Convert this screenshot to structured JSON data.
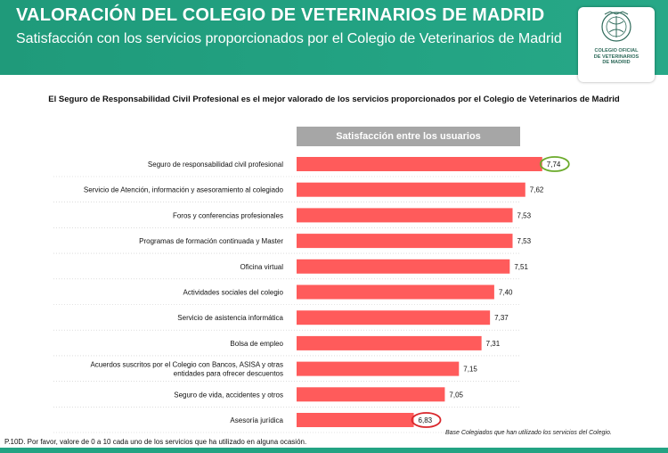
{
  "header": {
    "title": "VALORACIÓN DEL COLEGIO DE VETERINARIOS DE MADRID",
    "subtitle": "Satisfacción con los servicios proporcionados por el Colegio de Veterinarios de Madrid"
  },
  "logo": {
    "line1": "COLEGIO OFICIAL",
    "line2": "DE VETERINARIOS",
    "line3": "DE MADRID"
  },
  "subheading": "El Seguro de Responsabilidad Civil Profesional es el mejor valorado de los servicios proporcionados por el Colegio de Veterinarios de Madrid",
  "footnotes": {
    "base": "Base  Colegiados que han utilizado los servicios del Colegio.",
    "question": "P.10D. Por favor, valore de 0 a 10 cada uno de los servicios que ha utilizado en alguna ocasión."
  },
  "colors": {
    "header": "#23a383",
    "bar": "#ff5b5b",
    "highlight_max": "#6aaa2a",
    "highlight_min": "#d9262b",
    "legend_bg": "#a6a6a6"
  },
  "chart_data": {
    "type": "bar",
    "orientation": "horizontal",
    "series": [
      {
        "name": "Satisfacción entre los usuarios",
        "values": [
          7.74,
          7.62,
          7.53,
          7.53,
          7.51,
          7.4,
          7.37,
          7.31,
          7.15,
          7.05,
          6.83
        ],
        "labels": [
          "7,74",
          "7,62",
          "7,53",
          "7,53",
          "7,51",
          "7,40",
          "7,37",
          "7,31",
          "7,15",
          "7,05",
          "6,83"
        ]
      }
    ],
    "categories": [
      [
        "Seguro de responsabilidad civil profesional"
      ],
      [
        "Servicio de Atención, información y asesoramiento al colegiado"
      ],
      [
        "Foros y conferencias profesionales"
      ],
      [
        "Programas de formación continuada y Master"
      ],
      [
        "Oficina virtual"
      ],
      [
        "Actividades sociales del colegio"
      ],
      [
        "Servicio de asistencia informática"
      ],
      [
        "Bolsa de empleo"
      ],
      [
        "Acuerdos suscritos por el Colegio con Bancos, ASISA y otras",
        "entidades para ofrecer descuentos"
      ],
      [
        "Seguro de vida, accidentes y otros"
      ],
      [
        "Asesoría jurídica"
      ]
    ],
    "xlim": [
      6.0,
      8.0
    ],
    "highlighted": {
      "max_index": 0,
      "min_index": 10
    },
    "grid": false
  }
}
